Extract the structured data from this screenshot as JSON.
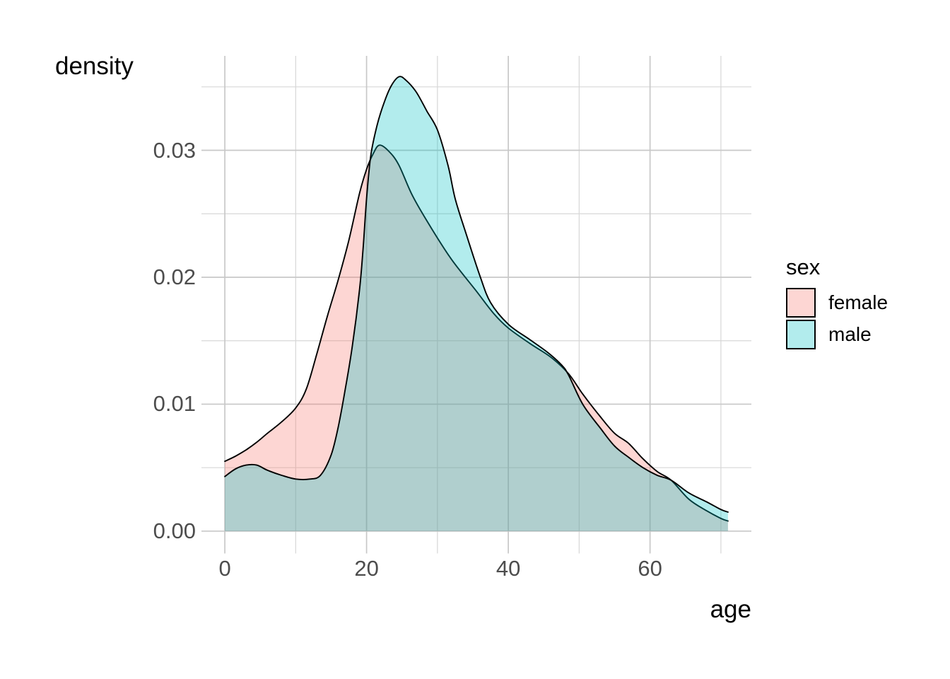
{
  "legend": {
    "title": "sex",
    "items": [
      {
        "label": "female",
        "color": "rgba(248,118,109,0.30)"
      },
      {
        "label": "male",
        "color": "rgba(0,191,196,0.30)"
      }
    ]
  },
  "colors": {
    "female_fill": "rgba(248,118,109,0.30)",
    "male_fill": "rgba(0,191,196,0.30)",
    "outline": "#000000",
    "grid_major": "#c8c8c8",
    "grid_minor": "#d7d7d7",
    "tick_text": "#4d4d4d",
    "title_text": "#000000",
    "background": "#ffffff"
  },
  "chart_data": {
    "type": "area",
    "title": "",
    "xlabel": "age",
    "ylabel": "density",
    "grid": "major+minor",
    "legend_position": "right",
    "x_axis": {
      "ticks": [
        0,
        20,
        40,
        60
      ],
      "tick_labels": [
        "0",
        "20",
        "40",
        "60"
      ],
      "minor_ticks": [
        10,
        30,
        50,
        70
      ],
      "range": [
        -3.3,
        74.3
      ]
    },
    "y_axis": {
      "ticks": [
        0,
        0.01,
        0.02,
        0.03
      ],
      "tick_labels": [
        "0.00",
        "0.01",
        "0.02",
        "0.03"
      ],
      "minor_ticks": [
        0.005,
        0.015,
        0.025,
        0.035
      ],
      "range": [
        -0.00176,
        0.03744
      ]
    },
    "series": [
      {
        "name": "female",
        "fill": "rgba(248,118,109,0.30)",
        "stroke": "#000000",
        "points": [
          [
            0,
            0.0055
          ],
          [
            1.5,
            0.0059
          ],
          [
            3,
            0.0064
          ],
          [
            4.5,
            0.007
          ],
          [
            6,
            0.0077
          ],
          [
            8,
            0.0086
          ],
          [
            10,
            0.0097
          ],
          [
            11.5,
            0.0112
          ],
          [
            13,
            0.014
          ],
          [
            14.5,
            0.017
          ],
          [
            16,
            0.0198
          ],
          [
            17.5,
            0.0229
          ],
          [
            19,
            0.0266
          ],
          [
            20,
            0.0285
          ],
          [
            21,
            0.0298
          ],
          [
            21.8,
            0.0304
          ],
          [
            23,
            0.03
          ],
          [
            24.5,
            0.0289
          ],
          [
            26.5,
            0.0264
          ],
          [
            29,
            0.024
          ],
          [
            32,
            0.0214
          ],
          [
            35.5,
            0.0189
          ],
          [
            38,
            0.0171
          ],
          [
            40,
            0.016
          ],
          [
            43,
            0.0148
          ],
          [
            46,
            0.0137
          ],
          [
            48.5,
            0.0124
          ],
          [
            50.5,
            0.0108
          ],
          [
            53,
            0.009
          ],
          [
            55,
            0.0077
          ],
          [
            57,
            0.0069
          ],
          [
            59,
            0.0057
          ],
          [
            61,
            0.0047
          ],
          [
            63,
            0.004
          ],
          [
            65.5,
            0.0025
          ],
          [
            68,
            0.0016
          ],
          [
            70,
            0.001
          ],
          [
            71,
            0.0008
          ]
        ]
      },
      {
        "name": "male",
        "fill": "rgba(0,191,196,0.30)",
        "stroke": "#000000",
        "points": [
          [
            0,
            0.0043
          ],
          [
            1.5,
            0.0049
          ],
          [
            3,
            0.0052
          ],
          [
            4.5,
            0.0052
          ],
          [
            6,
            0.0048
          ],
          [
            8,
            0.0044
          ],
          [
            10,
            0.0041
          ],
          [
            12,
            0.0041
          ],
          [
            13.5,
            0.0044
          ],
          [
            15,
            0.006
          ],
          [
            16,
            0.0082
          ],
          [
            17,
            0.0112
          ],
          [
            18,
            0.0146
          ],
          [
            19,
            0.019
          ],
          [
            19.5,
            0.0222
          ],
          [
            20,
            0.0262
          ],
          [
            20.6,
            0.0296
          ],
          [
            21.5,
            0.032
          ],
          [
            22.5,
            0.0338
          ],
          [
            23.5,
            0.0351
          ],
          [
            24.6,
            0.0358
          ],
          [
            25.6,
            0.0355
          ],
          [
            27,
            0.0346
          ],
          [
            28.5,
            0.0331
          ],
          [
            30,
            0.0316
          ],
          [
            31.5,
            0.0288
          ],
          [
            32.5,
            0.0262
          ],
          [
            34,
            0.0235
          ],
          [
            36,
            0.0201
          ],
          [
            37.5,
            0.018
          ],
          [
            40,
            0.0163
          ],
          [
            43,
            0.0151
          ],
          [
            45.5,
            0.0141
          ],
          [
            47.5,
            0.0131
          ],
          [
            48.5,
            0.0123
          ],
          [
            50.5,
            0.01
          ],
          [
            53,
            0.0081
          ],
          [
            55,
            0.0067
          ],
          [
            57,
            0.0058
          ],
          [
            59,
            0.005
          ],
          [
            61,
            0.0044
          ],
          [
            63,
            0.004
          ],
          [
            65.5,
            0.003
          ],
          [
            68,
            0.0023
          ],
          [
            70,
            0.0017
          ],
          [
            71,
            0.0015
          ]
        ]
      }
    ]
  }
}
